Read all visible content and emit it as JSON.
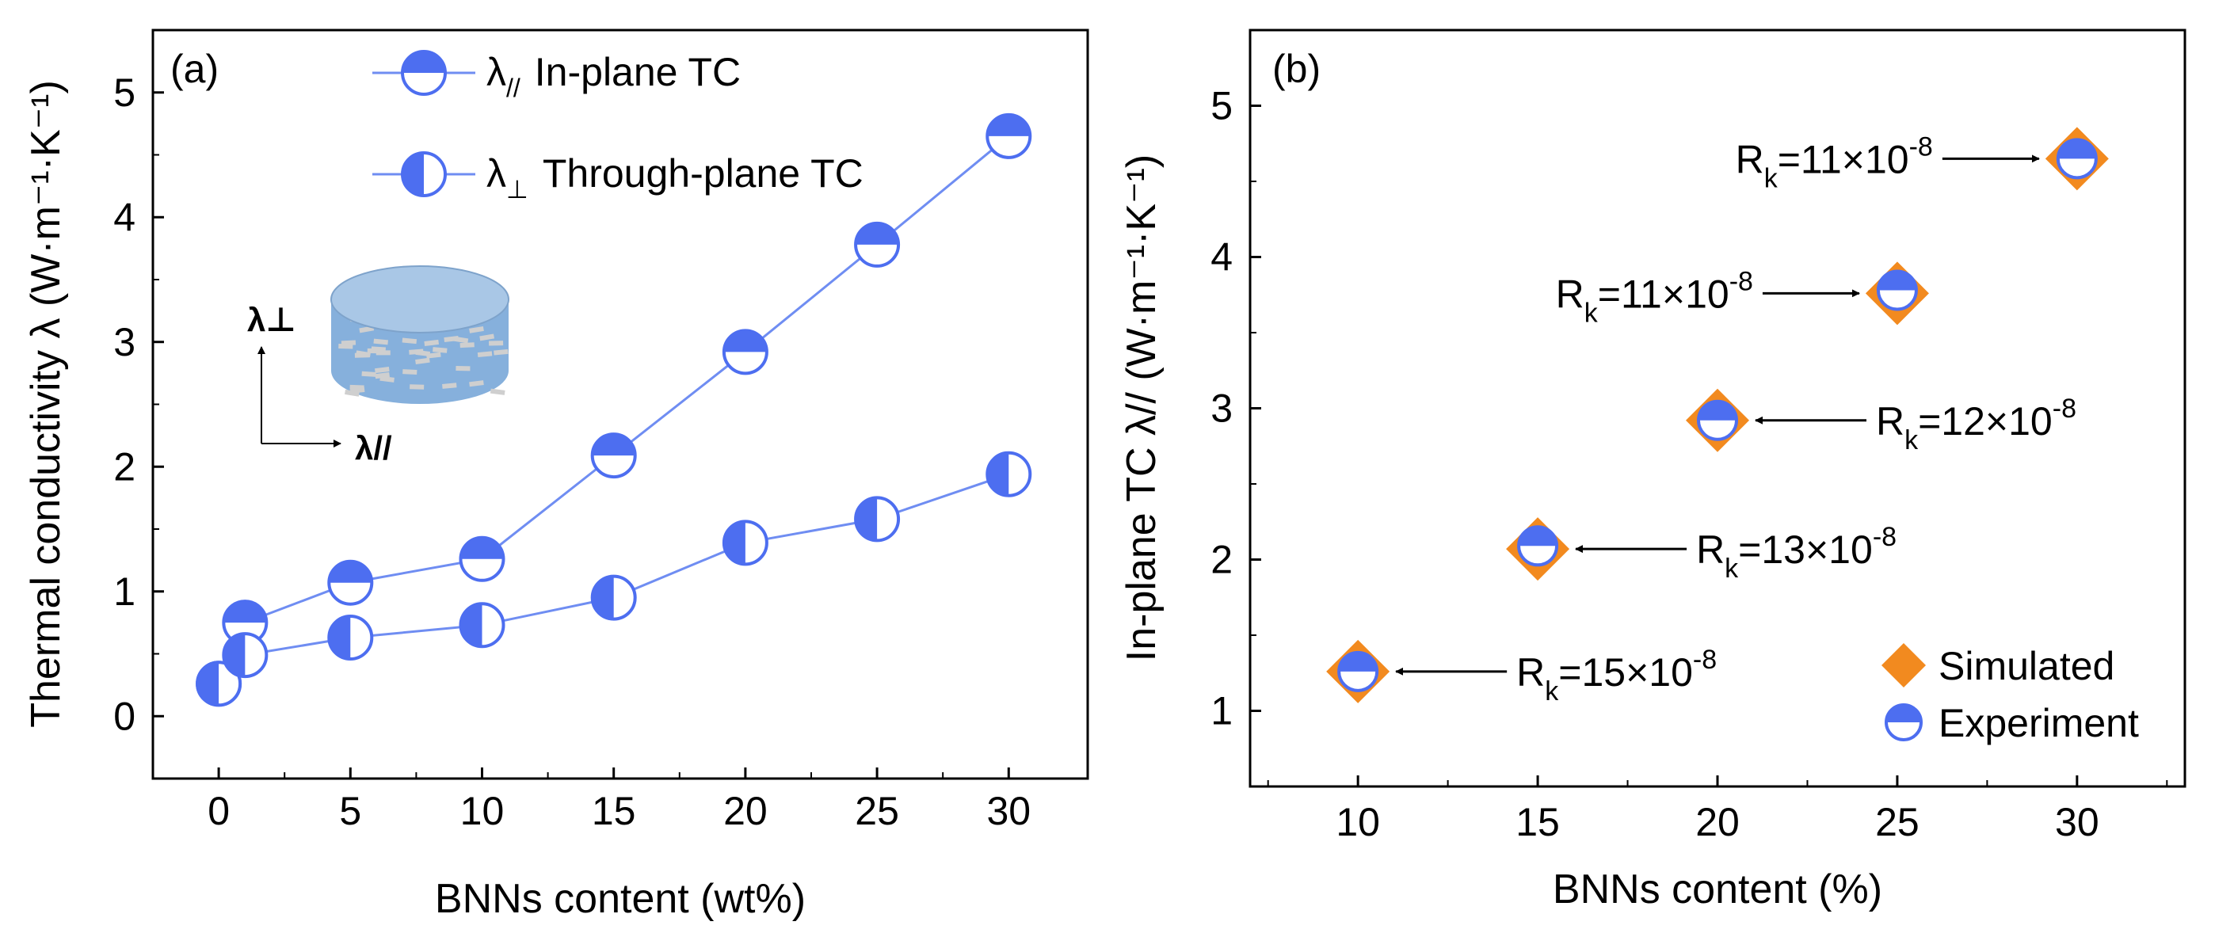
{
  "chart_data": [
    {
      "panel_label": "(a)",
      "type": "line",
      "xlabel": "BNNs content (wt%)",
      "ylabel": "Thermal conductivity λ (W·m⁻¹·K⁻¹)",
      "xlim": [
        -2.5,
        33
      ],
      "ylim": [
        -0.5,
        5.5
      ],
      "xticks": [
        0,
        5,
        10,
        15,
        20,
        25,
        30
      ],
      "yticks": [
        0,
        1,
        2,
        3,
        4,
        5
      ],
      "grid": false,
      "legend_position": "top-center",
      "series": [
        {
          "name": "λ// In-plane TC",
          "marker": "half-filled-top",
          "x": [
            0,
            1,
            5,
            10,
            15,
            20,
            25,
            30
          ],
          "y": [
            0.26,
            0.75,
            1.07,
            1.26,
            2.09,
            2.92,
            3.78,
            4.65
          ]
        },
        {
          "name": "λ⊥ Through-plane TC",
          "marker": "half-filled-left",
          "x": [
            0,
            1,
            5,
            10,
            15,
            20,
            25,
            30
          ],
          "y": [
            0.26,
            0.49,
            0.63,
            0.73,
            0.95,
            1.39,
            1.58,
            1.94
          ]
        }
      ],
      "legend": [
        {
          "symbol": "λ",
          "sub": "//",
          "text": "In-plane TC"
        },
        {
          "symbol": "λ",
          "sub": "⊥",
          "text": "Through-plane TC"
        }
      ],
      "inset": {
        "vertical_axis_label": "λ⊥",
        "horizontal_axis_label": "λ//"
      }
    },
    {
      "panel_label": "(b)",
      "type": "scatter",
      "xlabel": "BNNs content (%)",
      "ylabel": "In-plane TC λ// (W·m⁻¹·K⁻¹)",
      "xlim": [
        7,
        33
      ],
      "ylim": [
        0.5,
        5.5
      ],
      "xticks": [
        10,
        15,
        20,
        25,
        30
      ],
      "yticks": [
        1,
        2,
        3,
        4,
        5
      ],
      "grid": false,
      "legend_position": "bottom-right",
      "series": [
        {
          "name": "Simulated",
          "marker": "diamond",
          "color": "#f28a1f",
          "x": [
            10,
            15,
            20,
            25,
            30
          ],
          "y": [
            1.26,
            2.07,
            2.92,
            3.76,
            4.65
          ]
        },
        {
          "name": "Experiment",
          "marker": "half-filled-top",
          "x": [
            10,
            15,
            20,
            25,
            30
          ],
          "y": [
            1.26,
            2.09,
            2.92,
            3.78,
            4.65
          ]
        }
      ],
      "annotations": [
        {
          "base": "R",
          "sub": "k",
          "text": "=15×10",
          "exp": "-8",
          "target_x": 10,
          "target_y": 1.26
        },
        {
          "base": "R",
          "sub": "k",
          "text": "=13×10",
          "exp": "-8",
          "target_x": 15,
          "target_y": 2.07
        },
        {
          "base": "R",
          "sub": "k",
          "text": "=12×10",
          "exp": "-8",
          "target_x": 20,
          "target_y": 2.92
        },
        {
          "base": "R",
          "sub": "k",
          "text": "=11×10",
          "exp": "-8",
          "target_x": 25,
          "target_y": 3.76
        },
        {
          "base": "R",
          "sub": "k",
          "text": "=11×10",
          "exp": "-8",
          "target_x": 30,
          "target_y": 4.65
        }
      ]
    }
  ],
  "colors": {
    "marker_blue": "#4d6ef0",
    "line_blue": "#6f8df2",
    "diamond_orange": "#f28a1f",
    "inset_top": "#a9c7e6",
    "inset_side": "#86b0dc",
    "inset_flakes": "#cfcfcf"
  }
}
